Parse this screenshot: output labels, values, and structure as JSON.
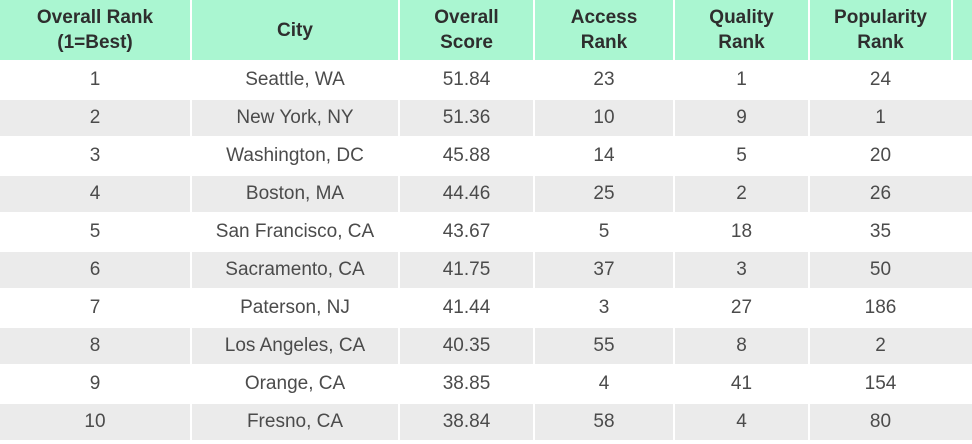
{
  "colors": {
    "header_bg": "#aaf6d1",
    "stripe_bg": "#ebebeb",
    "row_bg": "#ffffff",
    "separator": "#ffffff",
    "header_text": "#2e2e2e",
    "body_text": "#4b4b4b"
  },
  "chart_data": {
    "type": "table",
    "columns": [
      "Overall Rank\n(1=Best)",
      "City",
      "Overall\nScore",
      "Access\nRank",
      "Quality\nRank",
      "Popularity\nRank"
    ],
    "rows": [
      [
        "1",
        "Seattle, WA",
        "51.84",
        "23",
        "1",
        "24"
      ],
      [
        "2",
        "New York, NY",
        "51.36",
        "10",
        "9",
        "1"
      ],
      [
        "3",
        "Washington, DC",
        "45.88",
        "14",
        "5",
        "20"
      ],
      [
        "4",
        "Boston, MA",
        "44.46",
        "25",
        "2",
        "26"
      ],
      [
        "5",
        "San Francisco, CA",
        "43.67",
        "5",
        "18",
        "35"
      ],
      [
        "6",
        "Sacramento, CA",
        "41.75",
        "37",
        "3",
        "50"
      ],
      [
        "7",
        "Paterson, NJ",
        "41.44",
        "3",
        "27",
        "186"
      ],
      [
        "8",
        "Los Angeles, CA",
        "40.35",
        "55",
        "8",
        "2"
      ],
      [
        "9",
        "Orange, CA",
        "38.85",
        "4",
        "41",
        "154"
      ],
      [
        "10",
        "Fresno, CA",
        "38.84",
        "58",
        "4",
        "80"
      ]
    ]
  }
}
